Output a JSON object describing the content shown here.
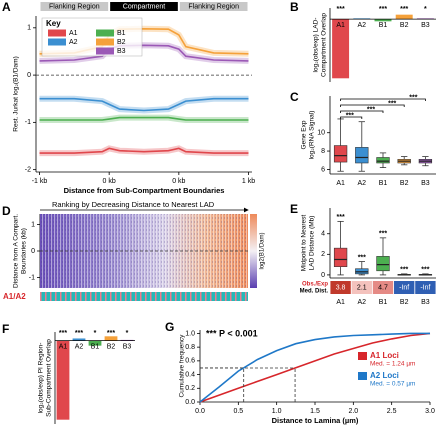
{
  "chart_data": [
    {
      "type": "line",
      "panel": "A",
      "annotations": [
        "Flanking Region",
        "Compartment",
        "Flanking Region"
      ],
      "annotation_colors": [
        "#c8c8c8",
        "#000000",
        "#c8c8c8"
      ],
      "legend_title": "Key",
      "ylabel": [
        "Rest. Jurkat log₂(B1/Dam)"
      ],
      "xlabel": "Distance from Sub-Compartment Boundaries",
      "x": [
        0,
        0.5,
        0.9,
        1,
        1.15,
        1.5,
        1.85,
        2,
        2.1,
        2.5,
        3
      ],
      "xlim": [
        -0.05,
        3.05
      ],
      "xticks": [
        {
          "value": 0,
          "label": "-1 kb"
        },
        {
          "value": 1,
          "label": "0 kb"
        },
        {
          "value": 2,
          "label": "0 kb"
        },
        {
          "value": 3,
          "label": "1 kb"
        }
      ],
      "ylim": [
        -2.05,
        1.25
      ],
      "yticks": [
        -2,
        -1,
        0,
        1
      ],
      "zero_line": true,
      "series": [
        {
          "name": "A1",
          "color": "#e0474c",
          "values": [
            -1.65,
            -1.65,
            -1.62,
            -1.55,
            -1.6,
            -1.62,
            -1.6,
            -1.55,
            -1.62,
            -1.65,
            -1.65
          ]
        },
        {
          "name": "A2",
          "color": "#3b8fd1",
          "values": [
            -0.5,
            -0.5,
            -0.55,
            -0.62,
            -0.72,
            -0.75,
            -0.72,
            -0.62,
            -0.55,
            -0.5,
            -0.5
          ]
        },
        {
          "name": "B1",
          "color": "#4caf50",
          "values": [
            -0.95,
            -0.95,
            -0.95,
            -0.93,
            -0.9,
            -0.9,
            -0.9,
            -0.93,
            -0.95,
            -0.95,
            -0.95
          ]
        },
        {
          "name": "B2",
          "color": "#f5a13a",
          "values": [
            0.45,
            0.47,
            0.6,
            0.85,
            0.97,
            0.98,
            0.97,
            0.85,
            0.6,
            0.47,
            0.45
          ]
        },
        {
          "name": "B3",
          "color": "#9b59b6",
          "values": [
            0.3,
            0.32,
            0.4,
            0.55,
            0.62,
            0.63,
            0.62,
            0.55,
            0.4,
            0.32,
            0.3
          ]
        }
      ]
    },
    {
      "type": "bar",
      "panel": "B",
      "ylabel": [
        "log₂(obs/exp) LAD-",
        "Compartment Overlap"
      ],
      "categories": [
        "A1",
        "A2",
        "B1",
        "B2",
        "B3"
      ],
      "values": [
        -1.6,
        0.02,
        -0.06,
        0.12,
        0.02
      ],
      "colors": [
        "#e0474c",
        "#3b8fd1",
        "#4caf50",
        "#f5a13a",
        "#9b59b6"
      ],
      "significance": [
        "***",
        null,
        "***",
        "***",
        "*"
      ],
      "ylim": [
        -1.7,
        0.3
      ]
    },
    {
      "type": "box",
      "panel": "C",
      "ylabel": [
        "Gene Exp",
        "log₂(RNA Signal)"
      ],
      "categories": [
        "A1",
        "A2",
        "B1",
        "B2",
        "B3"
      ],
      "colors": [
        "#e0474c",
        "#3b8fd1",
        "#4caf50",
        "#f5a13a",
        "#9b59b6"
      ],
      "boxes": [
        {
          "min": 5.8,
          "q1": 6.8,
          "median": 7.5,
          "q3": 8.6,
          "max": 11.5
        },
        {
          "min": 5.8,
          "q1": 6.7,
          "median": 7.3,
          "q3": 8.4,
          "max": 11.2
        },
        {
          "min": 6.2,
          "q1": 6.7,
          "median": 6.9,
          "q3": 7.3,
          "max": 7.8
        },
        {
          "min": 6.5,
          "q1": 6.7,
          "median": 6.9,
          "q3": 7.1,
          "max": 7.4
        },
        {
          "min": 6.4,
          "q1": 6.7,
          "median": 6.9,
          "q3": 7.1,
          "max": 7.4
        }
      ],
      "brackets": [
        "***",
        "***",
        "***",
        "***"
      ],
      "ylim": [
        5.5,
        14
      ],
      "yticks": [
        6,
        8,
        10
      ]
    },
    {
      "type": "heatmap",
      "panel": "D",
      "title": "Ranking by Decreasing Distance to Nearest LAD",
      "ylabel": [
        "Distance from A Compart.",
        "Boundaries (kb)"
      ],
      "colorbar_label": "log2(B1/Dam)",
      "strip_label": "A1/A2",
      "ylim": [
        -1.4,
        1.4
      ],
      "yticks": [
        -1,
        0,
        1
      ]
    },
    {
      "type": "box",
      "panel": "E",
      "ylabel": [
        "Midpoint to Nearest",
        "LAD Distance (Mb)"
      ],
      "categories": [
        "A1",
        "A2",
        "B1",
        "B2",
        "B3"
      ],
      "colors": [
        "#e0474c",
        "#3b8fd1",
        "#4caf50",
        "#f5a13a",
        "#9b59b6"
      ],
      "boxes": [
        {
          "min": 0,
          "q1": 0.8,
          "median": 1.5,
          "q3": 2.6,
          "max": 5.2
        },
        {
          "min": 0,
          "q1": 0.1,
          "median": 0.3,
          "q3": 0.6,
          "max": 1.3
        },
        {
          "min": 0,
          "q1": 0.4,
          "median": 1.0,
          "q3": 1.8,
          "max": 3.6
        },
        {
          "min": 0,
          "q1": 0,
          "median": 0,
          "q3": 0.05,
          "max": 0.1
        },
        {
          "min": 0,
          "q1": 0,
          "median": 0,
          "q3": 0.05,
          "max": 0.1
        }
      ],
      "significance": [
        "***",
        "***",
        "***",
        "***",
        "***"
      ],
      "row_labels": [
        "Obs./Exp",
        "Med. Dist."
      ],
      "ratios": [
        3.8,
        2.1,
        4.7,
        null,
        null
      ],
      "ratio_labels": [
        "3.8",
        "2.1",
        "4.7",
        "-Inf",
        "-Inf"
      ],
      "ratio_colors": [
        "#c0392b",
        "#f4c2bd",
        "#e58a85",
        "#2f5fb3",
        "#2f5fb3"
      ],
      "ylim": [
        -0.3,
        6.5
      ],
      "yticks": [
        0,
        2,
        4
      ]
    },
    {
      "type": "bar",
      "panel": "F",
      "ylabel": [
        "log₂(obs/exp) PI Region-",
        "Sub-Compartment Overlap"
      ],
      "categories": [
        "A1",
        "A2",
        "B1",
        "B2",
        "B3"
      ],
      "values": [
        -5.5,
        0.15,
        -0.35,
        0.3,
        0.05
      ],
      "colors": [
        "#e0474c",
        "#3b8fd1",
        "#4caf50",
        "#f5a13a",
        "#9b59b6"
      ],
      "significance": [
        "***",
        "***",
        "*",
        "***",
        "*"
      ],
      "ylim": [
        -5.8,
        0.6
      ]
    },
    {
      "type": "line",
      "panel": "G",
      "title": "*** P < 0.001",
      "ylabel": [
        "Cumulative frequency"
      ],
      "xlabel": "Distance to Lamina (µm)",
      "x": [
        0,
        0.25,
        0.5,
        0.75,
        1,
        1.25,
        1.5,
        1.75,
        2,
        2.25,
        2.5,
        2.75,
        3
      ],
      "xlim": [
        0,
        3
      ],
      "xticks": [
        {
          "value": 0,
          "label": "0.0"
        },
        0.5,
        {
          "value": 1,
          "label": "1.0"
        },
        1.5,
        {
          "value": 2,
          "label": "2.0"
        },
        2.5,
        {
          "value": 3,
          "label": "3.0"
        }
      ],
      "ylim": [
        0,
        1.05
      ],
      "yticks": [
        {
          "value": 0,
          "label": "0.0"
        },
        0.2,
        0.4,
        0.6,
        0.8,
        {
          "value": 1,
          "label": "1.0"
        }
      ],
      "series": [
        {
          "name": "A1 Loci",
          "color": "#d7262b",
          "median": 1.24,
          "median_label": "Med. = 1.24 µm",
          "values": [
            0,
            0.1,
            0.2,
            0.3,
            0.4,
            0.5,
            0.6,
            0.7,
            0.78,
            0.86,
            0.92,
            0.97,
            1.0
          ]
        },
        {
          "name": "A2 Loci",
          "color": "#1f78c8",
          "median": 0.57,
          "median_label": "Med. = 0.57 µm",
          "values": [
            0,
            0.22,
            0.45,
            0.62,
            0.75,
            0.85,
            0.91,
            0.95,
            0.97,
            0.98,
            0.99,
            1.0,
            1.0
          ]
        }
      ]
    }
  ]
}
